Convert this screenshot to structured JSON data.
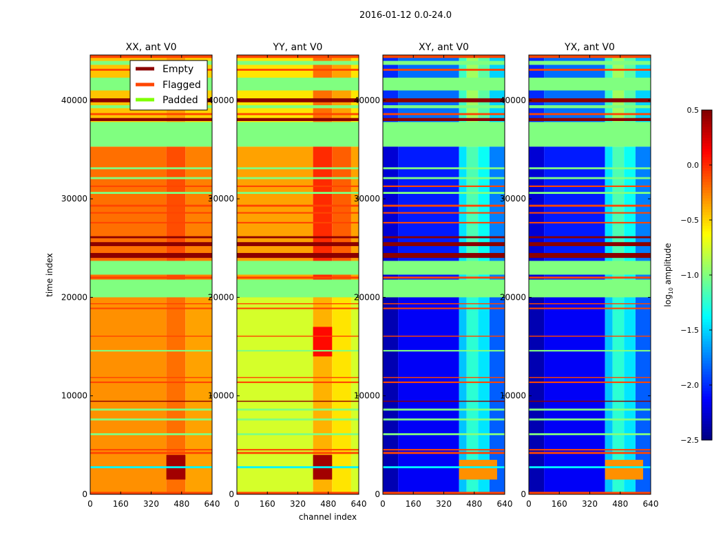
{
  "chart_data": {
    "type": "heatmap",
    "title": "2016-01-12 0.0-24.0",
    "xlabel": "channel index",
    "ylabel": "time index",
    "xlim": [
      0,
      640
    ],
    "ylim": [
      0,
      44600
    ],
    "xticks": [
      "0",
      "160",
      "320",
      "480",
      "640"
    ],
    "xtick_values": [
      0,
      160,
      320,
      480,
      640
    ],
    "yticks": [
      "0",
      "10000",
      "20000",
      "30000",
      "40000"
    ],
    "ytick_values": [
      0,
      10000,
      20000,
      30000,
      40000
    ],
    "colorbar": {
      "label_main": "log",
      "label_sub": "10",
      "label_rest": " amplitude",
      "range": [
        -2.5,
        0.5
      ],
      "colormap": "jet",
      "ticks": [
        "0.5",
        "0.0",
        "−0.5",
        "−1.0",
        "−1.5",
        "−2.0",
        "−2.5"
      ],
      "tick_values": [
        0.5,
        0.0,
        -0.5,
        -1.0,
        -1.5,
        -2.0,
        -2.5
      ]
    },
    "legend": {
      "placement": "upper-right of first panel",
      "entries": [
        {
          "label": "Empty",
          "color": "#8b0000"
        },
        {
          "label": "Flagged",
          "color": "#ff4500"
        },
        {
          "label": "Padded",
          "color": "#7fff00"
        }
      ]
    },
    "band_colors": {
      "flagged": "#ff4500",
      "empty": "#8b0000",
      "padded_value": -1.0
    },
    "bands": [
      [
        0,
        250,
        "flagged"
      ],
      [
        2650,
        2850,
        "cyan"
      ],
      [
        4100,
        4300,
        "flagged"
      ],
      [
        4450,
        4600,
        "flagged"
      ],
      [
        6000,
        6200,
        "padded"
      ],
      [
        7500,
        7700,
        "padded"
      ],
      [
        8500,
        8700,
        "padded"
      ],
      [
        9400,
        9500,
        "empty"
      ],
      [
        11300,
        11450,
        "flagged"
      ],
      [
        11800,
        11900,
        "flagged"
      ],
      [
        14500,
        14650,
        "padded"
      ],
      [
        16000,
        16100,
        "flagged"
      ],
      [
        18800,
        18950,
        "flagged"
      ],
      [
        19300,
        19400,
        "flagged"
      ],
      [
        20000,
        21800,
        "padded"
      ],
      [
        21900,
        22100,
        "flagged"
      ],
      [
        22300,
        23700,
        "padded"
      ],
      [
        24000,
        24500,
        "empty"
      ],
      [
        25200,
        25600,
        "empty"
      ],
      [
        26000,
        26200,
        "empty"
      ],
      [
        27500,
        27650,
        "flagged"
      ],
      [
        28500,
        28650,
        "flagged"
      ],
      [
        29200,
        29400,
        "flagged"
      ],
      [
        30500,
        30700,
        "padded"
      ],
      [
        31200,
        31350,
        "flagged"
      ],
      [
        32000,
        32200,
        "padded"
      ],
      [
        33000,
        33200,
        "padded"
      ],
      [
        35300,
        37800,
        "padded"
      ],
      [
        37900,
        38200,
        "empty"
      ],
      [
        38500,
        38700,
        "flagged"
      ],
      [
        39200,
        39500,
        "padded"
      ],
      [
        39800,
        40200,
        "empty"
      ],
      [
        41000,
        42300,
        "padded"
      ],
      [
        43000,
        43200,
        "flagged"
      ],
      [
        43600,
        44000,
        "padded"
      ],
      [
        44300,
        44600,
        "flagged"
      ]
    ],
    "panels": [
      {
        "title": "XX, ant V0",
        "base": [
          [
            0,
            20000,
            -0.3
          ],
          [
            20000,
            35300,
            -0.2
          ],
          [
            35300,
            44600,
            -0.45
          ]
        ],
        "profile": [
          [
            0,
            400,
            0
          ],
          [
            400,
            500,
            0.1
          ],
          [
            500,
            640,
            -0.05
          ]
        ],
        "hot": [
          [
            1500,
            4000,
            400,
            500,
            0.4
          ]
        ]
      },
      {
        "title": "YY, ant V0",
        "base": [
          [
            0,
            20000,
            -0.75
          ],
          [
            20000,
            35300,
            -0.35
          ],
          [
            35300,
            44600,
            -0.55
          ]
        ],
        "profile": [
          [
            0,
            400,
            0
          ],
          [
            400,
            500,
            0.35
          ],
          [
            500,
            600,
            0.2
          ],
          [
            600,
            640,
            0
          ]
        ],
        "hot": [
          [
            1500,
            4000,
            400,
            500,
            0.4
          ],
          [
            14000,
            17000,
            400,
            500,
            0.1
          ]
        ]
      },
      {
        "title": "XY, ant V0",
        "base": [
          [
            0,
            20000,
            -2.15
          ],
          [
            20000,
            35300,
            -2.05
          ],
          [
            35300,
            44600,
            -1.8
          ]
        ],
        "profile": [
          [
            0,
            80,
            -0.2
          ],
          [
            80,
            400,
            0
          ],
          [
            400,
            440,
            0.6
          ],
          [
            440,
            500,
            0.9
          ],
          [
            500,
            560,
            0.7
          ],
          [
            560,
            640,
            0.3
          ]
        ],
        "hot": [
          [
            1500,
            3500,
            400,
            600,
            -0.3
          ]
        ]
      },
      {
        "title": "YX, ant V0",
        "base": [
          [
            0,
            20000,
            -2.15
          ],
          [
            20000,
            35300,
            -2.05
          ],
          [
            35300,
            44600,
            -1.8
          ]
        ],
        "profile": [
          [
            0,
            80,
            -0.2
          ],
          [
            80,
            400,
            0
          ],
          [
            400,
            440,
            0.6
          ],
          [
            440,
            500,
            0.9
          ],
          [
            500,
            560,
            0.7
          ],
          [
            560,
            640,
            0.3
          ]
        ],
        "hot": [
          [
            1500,
            3500,
            400,
            600,
            -0.3
          ]
        ]
      }
    ]
  }
}
